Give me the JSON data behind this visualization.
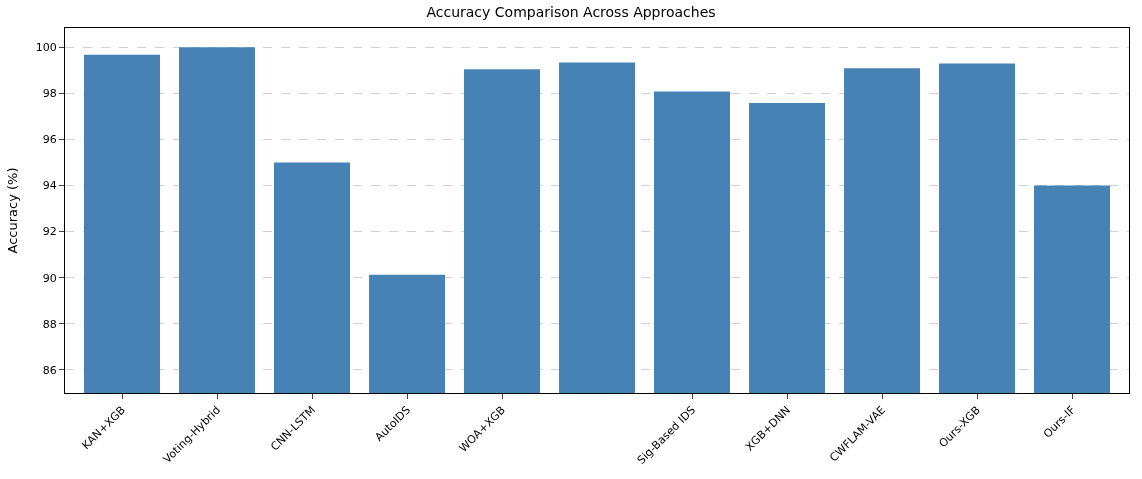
{
  "chart_data": {
    "type": "bar",
    "title": "Accuracy Comparison Across Approaches",
    "ylabel": "Accuracy (%)",
    "categories": [
      "KAN+XGB",
      "Voting-Hybrid",
      "CNN-LSTM",
      "AutoIDS",
      "WOA+XGB",
      null,
      "Sig-Based IDS",
      "XGB+DNN",
      "CWFLAM-VAE",
      "Ours-XGB",
      "Ours-IF"
    ],
    "values": [
      99.67,
      100.0,
      95.0,
      90.13,
      99.04,
      99.33,
      98.08,
      97.58,
      99.08,
      99.29,
      94.0
    ],
    "color": "#4682b4",
    "ylim": [
      85,
      100.83
    ],
    "yticks": [
      86,
      88,
      90,
      92,
      94,
      96,
      98,
      100
    ],
    "grid": "y"
  }
}
